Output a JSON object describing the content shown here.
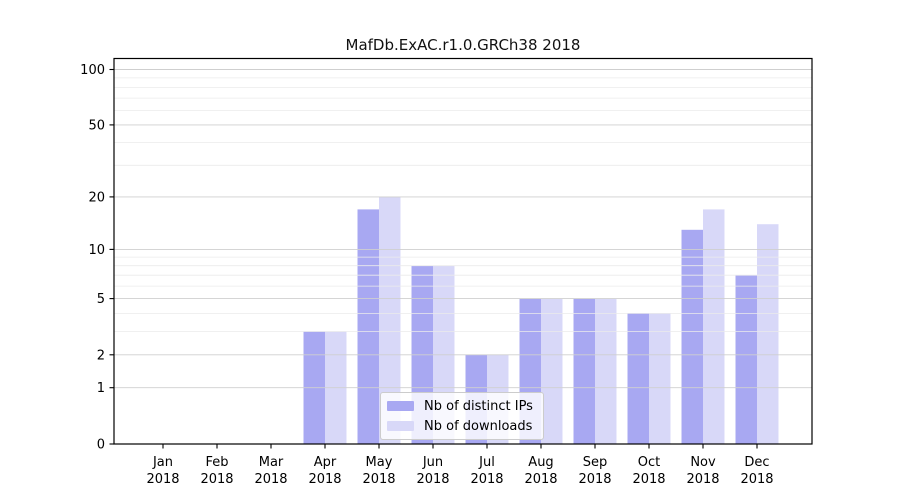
{
  "chart_data": {
    "type": "bar",
    "title": "MafDb.ExAC.r1.0.GRCh38 2018",
    "categories": [
      "Jan 2018",
      "Feb 2018",
      "Mar 2018",
      "Apr 2018",
      "May 2018",
      "Jun 2018",
      "Jul 2018",
      "Aug 2018",
      "Sep 2018",
      "Oct 2018",
      "Nov 2018",
      "Dec 2018"
    ],
    "series": [
      {
        "name": "Nb of distinct IPs",
        "color": "#a8a8f2",
        "values": [
          0,
          0,
          0,
          3,
          17,
          8,
          2,
          5,
          5,
          4,
          13,
          7
        ]
      },
      {
        "name": "Nb of downloads",
        "color": "#d8d8f8",
        "values": [
          0,
          0,
          0,
          3,
          20,
          8,
          2,
          5,
          5,
          4,
          17,
          14
        ]
      }
    ],
    "y_axis": {
      "scale": "log1p",
      "major_ticks": [
        0,
        1,
        2,
        5,
        10,
        20,
        50,
        100
      ],
      "minor_ticks": [
        3,
        4,
        6,
        7,
        8,
        9,
        30,
        40,
        60,
        70,
        80,
        90
      ],
      "range_max": 114.6
    },
    "legend": {
      "position": "inside-lower-center"
    },
    "grid": {
      "major_color": "#cfcfcf",
      "minor_color": "#ebebeb"
    },
    "frame_color": "#000000",
    "text_color": "#000000",
    "background": "#ffffff"
  }
}
